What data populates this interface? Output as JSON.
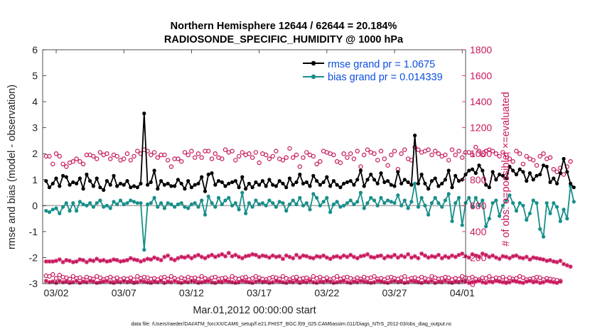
{
  "chart_data": {
    "type": "line",
    "title": "Northern Hemisphere 12644 / 62644 = 20.184%",
    "subtitle": "RADIOSONDE_SPECIFIC_HUMIDITY @ 1000 hPa",
    "xlabel": "Mar.01,2012 00:00:00 start",
    "ylabel_left": "rmse and bias (model - observation)",
    "ylabel_right": "# of obs: o=possible; ×=evaluated",
    "footer": "data file: /Users/raeder/DAI/ATM_forcXX/CAM6_setup/f.e21.FHIST_BGC.f09_025.CAM6assim.011/Diags_NTrS_2012-03/obs_diag_output.nc",
    "xlim": [
      0,
      31.25
    ],
    "ylim_left": [
      -3,
      6
    ],
    "ylim_right": [
      0,
      1800
    ],
    "x_ticks": [
      {
        "value": 1,
        "label": "03/02"
      },
      {
        "value": 6,
        "label": "03/07"
      },
      {
        "value": 11,
        "label": "03/12"
      },
      {
        "value": 16,
        "label": "03/17"
      },
      {
        "value": 21,
        "label": "03/22"
      },
      {
        "value": 26,
        "label": "03/27"
      },
      {
        "value": 31,
        "label": "04/01"
      }
    ],
    "y_ticks_left": [
      "-3",
      "-2",
      "-1",
      "0",
      "1",
      "2",
      "3",
      "4",
      "5",
      "6"
    ],
    "y_ticks_right": [
      "0",
      "200",
      "400",
      "600",
      "800",
      "1000",
      "1200",
      "1400",
      "1600",
      "1800"
    ],
    "legend": [
      {
        "name": "rmse grand pr = 1.0675",
        "color": "#000000"
      },
      {
        "name": "bias grand pr = 0.014339",
        "color": "#178f8a"
      }
    ],
    "colors": {
      "rmse": "#000000",
      "bias": "#178f8a",
      "obs": "#c8175d",
      "zero_line": "#aaaaaa"
    },
    "x_start": 0.25,
    "x_step": 0.25,
    "rmse": [
      0.95,
      0.7,
      0.85,
      1.05,
      0.75,
      1.15,
      1.1,
      0.8,
      0.9,
      0.85,
      1.05,
      0.65,
      1.2,
      0.95,
      0.75,
      1.05,
      0.7,
      0.6,
      0.95,
      0.8,
      1.15,
      0.75,
      0.85,
      0.8,
      0.95,
      0.7,
      0.75,
      0.7,
      0.85,
      3.55,
      0.8,
      0.9,
      1.35,
      0.65,
      0.95,
      0.8,
      0.85,
      0.75,
      0.75,
      1.0,
      0.85,
      0.65,
      0.95,
      0.7,
      0.8,
      0.85,
      1.1,
      0.55,
      1.2,
      1.25,
      0.8,
      0.95,
      0.9,
      0.75,
      0.85,
      0.9,
      0.95,
      0.7,
      1.1,
      0.65,
      0.85,
      0.7,
      0.9,
      0.8,
      0.95,
      0.75,
      1.0,
      0.8,
      0.75,
      0.95,
      0.85,
      0.7,
      1.05,
      0.8,
      0.9,
      1.2,
      0.85,
      0.9,
      0.75,
      1.15,
      0.95,
      0.8,
      0.9,
      1.1,
      0.75,
      0.95,
      0.8,
      0.7,
      0.85,
      0.9,
      0.95,
      0.8,
      1.0,
      1.35,
      0.75,
      1.0,
      1.2,
      1.0,
      0.85,
      1.25,
      0.9,
      0.95,
      0.8,
      0.75,
      1.3,
      0.85,
      1.0,
      0.9,
      0.8,
      2.7,
      0.85,
      1.2,
      0.85,
      0.65,
      0.95,
      1.05,
      0.75,
      0.85,
      1.0,
      1.35,
      0.7,
      1.15,
      0.95,
      1.0,
      1.2,
      1.35,
      1.4,
      1.25,
      1.55,
      1.35,
      0.8,
      0.7,
      1.3,
      1.0,
      1.2,
      1.15,
      1.05,
      1.5,
      1.35,
      1.2,
      1.4,
      1.3,
      0.95,
      1.25,
      1.0,
      1.15,
      1.2,
      1.55,
      1.5,
      0.9,
      1.05,
      0.85,
      1.25,
      1.8,
      1.3,
      0.85,
      0.7
    ],
    "bias": [
      -0.2,
      -0.25,
      -0.15,
      -0.1,
      -0.3,
      -0.05,
      0.1,
      -0.2,
      0.1,
      -0.2,
      0.15,
      0.05,
      0.0,
      0.1,
      -0.05,
      0.1,
      0.2,
      -0.05,
      0.0,
      -0.1,
      0.15,
      0.05,
      0.2,
      0.05,
      0.1,
      0.2,
      0.15,
      0.1,
      0.1,
      -1.7,
      0.05,
      0.1,
      0.3,
      -0.05,
      0.1,
      -0.1,
      0.1,
      0.05,
      -0.05,
      0.05,
      0.1,
      -0.05,
      -0.1,
      0.05,
      0.1,
      -0.05,
      0.2,
      -0.35,
      0.35,
      0.1,
      -0.05,
      0.3,
      0.05,
      0.2,
      0.3,
      0.0,
      0.1,
      -0.15,
      0.5,
      -0.3,
      0.1,
      -0.05,
      0.2,
      0.05,
      0.1,
      0.0,
      0.2,
      0.1,
      -0.05,
      0.15,
      0.1,
      -0.2,
      0.05,
      0.2,
      0.05,
      0.3,
      0.0,
      0.1,
      -0.15,
      0.45,
      0.3,
      0.0,
      0.15,
      0.3,
      -0.25,
      0.05,
      0.15,
      -0.05,
      0.0,
      0.1,
      0.2,
      0.05,
      0.15,
      0.5,
      -0.1,
      0.1,
      0.3,
      0.2,
      0.0,
      0.3,
      0.1,
      0.2,
      0.15,
      0.1,
      0.4,
      0.0,
      0.2,
      -0.1,
      0.15,
      0.85,
      -0.05,
      0.3,
      0.0,
      -0.35,
      0.1,
      0.3,
      0.1,
      -0.05,
      0.2,
      0.45,
      -0.6,
      0.1,
      0.3,
      -0.75,
      0.1,
      0.3,
      -0.05,
      0.3,
      0.0,
      0.2,
      -0.8,
      -0.5,
      0.1,
      0.2,
      -0.4,
      0.0,
      0.2,
      0.4,
      0.1,
      -0.2,
      0.1,
      0.0,
      -0.55,
      -0.3,
      0.2,
      0.1,
      -0.9,
      -1.2,
      0.1,
      -0.3,
      0.1,
      -0.05,
      -0.6,
      -0.15,
      -0.5,
      0.75,
      0.15
    ],
    "possible": [
      980,
      980,
      920,
      1000,
      980,
      920,
      900,
      930,
      940,
      960,
      940,
      920,
      990,
      990,
      980,
      960,
      1010,
      990,
      1000,
      960,
      990,
      980,
      950,
      960,
      1000,
      950,
      980,
      1020,
      1000,
      1030,
      1020,
      990,
      1010,
      970,
      990,
      990,
      950,
      900,
      960,
      960,
      940,
      1010,
      990,
      1020,
      970,
      1000,
      970,
      1020,
      1020,
      960,
      1000,
      970,
      960,
      1030,
      1010,
      1020,
      950,
      980,
      1010,
      990,
      1000,
      970,
      1010,
      930,
      1000,
      990,
      960,
      980,
      1020,
      960,
      950,
      970,
      1040,
      970,
      990,
      900,
      970,
      1010,
      990,
      980,
      920,
      940,
      1020,
      1010,
      1000,
      990,
      940,
      930,
      1000,
      970,
      1000,
      960,
      1020,
      900,
      990,
      1030,
      1010,
      1000,
      950,
      1020,
      960,
      910,
      990,
      1020,
      880,
      1000,
      1030,
      960,
      950,
      1050,
      1030,
      1010,
      1020,
      1030,
      990,
      1020,
      1000,
      980,
      990,
      950,
      1030,
      990,
      1020,
      970,
      1010,
      1010,
      990,
      1050,
      1020,
      990,
      1020,
      1030,
      1020,
      1000,
      980,
      1010,
      990,
      960,
      940,
      1020,
      1000,
      920,
      980,
      960,
      950,
      910,
      980,
      1000,
      960,
      970,
      880,
      860,
      890,
      840,
      900,
      940
    ],
    "evaluated": [
      170,
      170,
      170,
      175,
      185,
      165,
      180,
      175,
      165,
      170,
      185,
      180,
      165,
      180,
      175,
      190,
      175,
      180,
      170,
      175,
      185,
      180,
      170,
      175,
      180,
      195,
      185,
      180,
      170,
      180,
      190,
      185,
      200,
      190,
      180,
      205,
      215,
      190,
      180,
      195,
      205,
      200,
      210,
      195,
      210,
      220,
      205,
      195,
      210,
      220,
      205,
      215,
      225,
      210,
      235,
      210,
      220,
      205,
      195,
      210,
      215,
      225,
      220,
      205,
      215,
      210,
      200,
      215,
      205,
      210,
      190,
      215,
      205,
      195,
      220,
      200,
      215,
      210,
      200,
      195,
      210,
      205,
      215,
      200,
      190,
      205,
      210,
      200,
      215,
      205,
      220,
      205,
      195,
      210,
      215,
      225,
      205,
      200,
      210,
      215,
      195,
      210,
      205,
      220,
      200,
      215,
      205,
      225,
      200,
      210,
      195,
      230,
      215,
      200,
      210,
      205,
      220,
      195,
      210,
      200,
      215,
      205,
      220,
      230,
      210,
      200,
      225,
      215,
      205,
      230,
      220,
      205,
      215,
      200,
      190,
      210,
      205,
      195,
      210,
      215,
      200,
      195,
      205,
      185,
      200,
      195,
      190,
      185,
      175,
      180,
      170,
      165,
      175,
      150,
      140,
      130
    ],
    "possible_low": [
      60,
      55,
      70,
      40,
      65,
      50,
      45,
      35,
      55,
      40,
      45,
      30,
      50,
      40,
      35,
      55,
      45,
      30,
      40,
      50,
      35,
      45,
      30,
      40,
      35,
      45,
      30,
      55,
      40,
      50,
      45,
      35,
      40,
      30,
      45,
      50,
      35,
      55,
      40,
      30,
      45,
      35,
      50,
      40,
      45,
      35,
      55,
      40,
      30,
      45,
      50,
      35,
      40,
      45,
      30,
      55,
      40,
      35,
      45,
      50,
      30,
      40,
      55,
      45,
      35,
      30,
      40,
      50,
      45,
      35,
      55,
      40,
      30,
      45,
      50,
      35,
      40,
      45,
      30,
      55,
      40,
      50,
      35,
      45,
      30,
      40,
      55,
      35,
      45,
      50,
      40,
      30,
      45,
      35,
      50,
      40,
      45,
      55,
      35,
      40,
      30,
      45,
      50,
      40,
      35,
      45,
      55,
      30,
      40,
      45,
      35,
      50,
      40,
      30,
      55,
      45,
      35,
      40,
      50,
      45,
      30,
      40,
      35,
      55,
      45,
      40,
      50,
      35,
      30,
      45,
      40,
      55,
      35,
      45,
      40,
      50,
      30,
      45,
      35,
      40,
      55,
      45,
      30,
      35,
      40,
      50,
      45,
      30,
      40,
      35,
      30,
      25,
      20
    ],
    "evaluated_low": [
      20,
      10,
      15,
      5,
      20,
      10,
      15,
      5,
      10,
      20,
      5,
      15,
      10,
      20,
      15,
      5,
      10,
      15,
      20,
      10,
      5,
      15,
      10,
      20,
      10,
      15,
      5,
      10,
      20,
      15,
      10,
      5,
      15,
      10,
      20,
      5,
      15,
      10,
      20,
      10,
      5,
      15,
      10,
      20,
      15,
      5,
      10,
      15,
      20,
      10,
      5,
      15,
      10,
      20,
      15,
      10,
      5,
      10,
      20,
      15,
      10,
      5,
      15,
      20,
      10,
      15,
      5,
      10,
      20,
      15,
      10,
      5,
      15,
      10,
      20,
      5,
      15,
      10,
      20,
      10,
      5,
      15,
      10,
      20,
      15,
      5,
      10,
      15,
      20,
      10,
      5,
      15,
      10,
      20,
      15,
      10,
      5,
      10,
      20,
      15,
      10,
      5,
      15,
      20,
      10,
      15,
      5,
      10,
      20,
      15,
      10,
      5,
      15,
      10,
      20,
      5,
      15,
      10,
      20,
      10,
      5,
      15,
      10,
      20,
      15,
      5,
      10,
      15,
      20,
      10,
      5,
      15,
      10,
      20,
      15,
      10,
      5,
      10,
      20,
      15,
      10,
      5,
      15,
      20,
      10,
      15,
      5,
      10,
      20,
      15,
      10,
      5,
      15
    ]
  }
}
